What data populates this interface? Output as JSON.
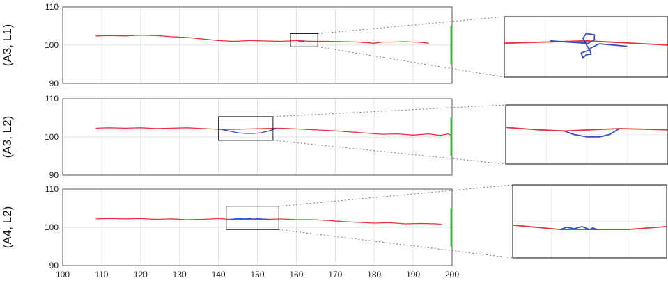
{
  "chart_data": [
    {
      "type": "line",
      "row_label": "(A3, L1)",
      "xlim": [
        100,
        200
      ],
      "ylim": [
        90,
        110
      ],
      "x_ticks": [
        "100",
        "110",
        "120",
        "130",
        "140",
        "150",
        "160",
        "170",
        "180",
        "190",
        "200"
      ],
      "y_ticks": [
        "90",
        "100",
        "110"
      ],
      "grid": true,
      "series": [
        {
          "color": "#e8323c",
          "x": [
            108.5,
            112,
            116,
            120,
            124,
            128,
            132,
            136,
            140,
            144,
            148,
            152,
            156,
            160,
            164,
            168,
            172,
            176,
            180,
            182,
            184,
            188,
            192,
            194
          ],
          "y": [
            102.4,
            102.5,
            102.4,
            102.6,
            102.5,
            102.2,
            102.0,
            101.6,
            101.2,
            101.0,
            101.2,
            101.1,
            101.0,
            101.2,
            101.0,
            101.0,
            100.9,
            100.8,
            100.5,
            100.8,
            100.8,
            100.9,
            100.7,
            100.5
          ]
        },
        {
          "color": "#3b4fb8",
          "x": [
            160.5,
            161.0,
            161.5,
            162.0,
            161.5
          ],
          "y": [
            101.0,
            100.8,
            101.1,
            100.9,
            101.0
          ]
        }
      ],
      "green_bar": {
        "x": 200,
        "y_range": [
          95,
          105
        ],
        "color": "#3cb043"
      },
      "zoom_box": {
        "x_range": [
          158.5,
          165.5
        ],
        "y_range": [
          99.6,
          103.0
        ]
      }
    },
    {
      "type": "line",
      "row_label": "(A3, L2)",
      "xlim": [
        100,
        200
      ],
      "ylim": [
        90,
        110
      ],
      "x_ticks": [
        "100",
        "110",
        "120",
        "130",
        "140",
        "150",
        "160",
        "170",
        "180",
        "190",
        "200"
      ],
      "y_ticks": [
        "90",
        "100",
        "110"
      ],
      "grid": true,
      "series": [
        {
          "color": "#e8323c",
          "x": [
            108.5,
            112,
            116,
            120,
            124,
            128,
            132,
            136,
            140,
            141,
            155,
            158,
            162,
            166,
            170,
            174,
            178,
            182,
            186,
            190,
            194,
            197,
            199,
            200
          ],
          "y": [
            102.3,
            102.4,
            102.3,
            102.4,
            102.2,
            102.3,
            102.4,
            102.2,
            102.0,
            101.9,
            102.3,
            102.2,
            102.0,
            101.8,
            101.6,
            101.3,
            101.0,
            100.7,
            100.8,
            100.5,
            100.8,
            100.4,
            100.8,
            100.3
          ]
        },
        {
          "color": "#3b4fb8",
          "x": [
            141,
            143,
            145,
            147,
            149,
            151,
            153,
            155
          ],
          "y": [
            101.9,
            101.5,
            101.1,
            100.9,
            100.9,
            101.1,
            101.6,
            102.3
          ]
        }
      ],
      "green_bar": {
        "x": 200,
        "y_range": [
          95,
          105
        ],
        "color": "#3cb043"
      },
      "zoom_box": {
        "x_range": [
          140,
          154
        ],
        "y_range": [
          99.1,
          105.3
        ]
      }
    },
    {
      "type": "line",
      "row_label": "(A4, L2)",
      "xlim": [
        100,
        200
      ],
      "ylim": [
        90,
        110
      ],
      "x_ticks": [
        "100",
        "110",
        "120",
        "130",
        "140",
        "150",
        "160",
        "170",
        "180",
        "190",
        "200"
      ],
      "y_ticks": [
        "90",
        "100",
        "110"
      ],
      "grid": true,
      "series": [
        {
          "color": "#e8323c",
          "x": [
            108.5,
            112,
            116,
            120,
            124,
            128,
            132,
            136,
            140,
            143,
            153,
            156,
            160,
            164,
            168,
            172,
            176,
            180,
            184,
            188,
            192,
            196,
            197.5
          ],
          "y": [
            102.2,
            102.3,
            102.2,
            102.3,
            102.1,
            102.2,
            102.0,
            102.1,
            102.3,
            102.1,
            102.1,
            102.2,
            102.0,
            102.0,
            101.8,
            101.5,
            101.3,
            101.1,
            101.2,
            100.9,
            101.0,
            100.9,
            100.7
          ]
        },
        {
          "color": "#3b4fb8",
          "x": [
            143,
            145,
            147,
            149,
            151,
            153
          ],
          "y": [
            102.1,
            102.3,
            102.2,
            102.4,
            102.2,
            102.1
          ]
        }
      ],
      "green_bar": {
        "x": 200,
        "y_range": [
          95,
          105
        ],
        "color": "#3cb043"
      },
      "zoom_box": {
        "x_range": [
          142,
          155.5
        ],
        "y_range": [
          99.4,
          105.5
        ]
      }
    }
  ],
  "zoom_insets": [
    {
      "red": [
        [
          0,
          0.44
        ],
        [
          0.5,
          0.4
        ],
        [
          1,
          0.47
        ]
      ],
      "blue": [
        [
          0.28,
          0.4
        ],
        [
          0.5,
          0.44
        ],
        [
          0.48,
          0.36
        ],
        [
          0.5,
          0.28
        ],
        [
          0.55,
          0.3
        ],
        [
          0.55,
          0.38
        ],
        [
          0.5,
          0.46
        ],
        [
          0.52,
          0.55
        ],
        [
          0.47,
          0.6
        ],
        [
          0.48,
          0.68
        ],
        [
          0.5,
          0.63
        ],
        [
          0.53,
          0.62
        ],
        [
          0.52,
          0.53
        ],
        [
          0.58,
          0.45
        ],
        [
          0.75,
          0.49
        ]
      ]
    },
    {
      "red": [
        [
          0,
          0.38
        ],
        [
          0.2,
          0.42
        ],
        [
          0.36,
          0.44
        ],
        [
          0.7,
          0.4
        ],
        [
          1,
          0.42
        ]
      ],
      "blue": [
        [
          0.36,
          0.44
        ],
        [
          0.42,
          0.5
        ],
        [
          0.5,
          0.54
        ],
        [
          0.58,
          0.54
        ],
        [
          0.64,
          0.5
        ],
        [
          0.7,
          0.4
        ]
      ]
    },
    {
      "red": [
        [
          0,
          0.55
        ],
        [
          0.2,
          0.59
        ],
        [
          0.31,
          0.61
        ],
        [
          0.55,
          0.61
        ],
        [
          0.75,
          0.61
        ],
        [
          1,
          0.57
        ]
      ],
      "blue": [
        [
          0.31,
          0.61
        ],
        [
          0.35,
          0.58
        ],
        [
          0.4,
          0.6
        ],
        [
          0.45,
          0.57
        ],
        [
          0.5,
          0.61
        ],
        [
          0.52,
          0.59
        ],
        [
          0.55,
          0.61
        ]
      ]
    }
  ]
}
